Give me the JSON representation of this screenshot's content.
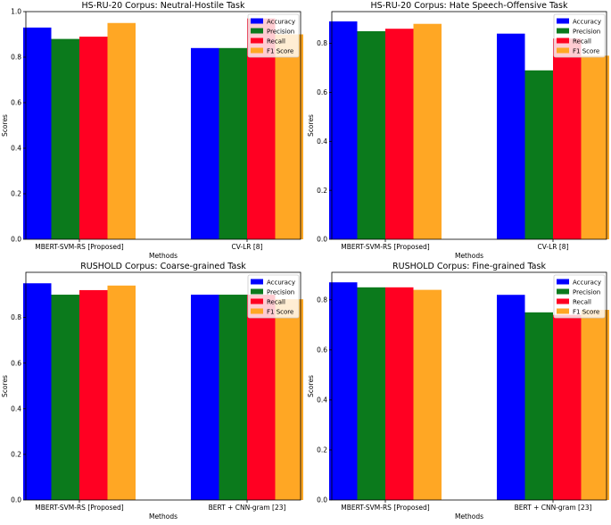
{
  "colors": {
    "Accuracy": "#0000ff",
    "Precision": "#0b7a1c",
    "Recall": "#ff0022",
    "F1 Score": "#ffa724"
  },
  "chart_data": [
    {
      "type": "bar",
      "title": "HS-RU-20 Corpus: Neutral-Hostile Task",
      "xlabel": "Methods",
      "ylabel": "Scores",
      "ylim": [
        0,
        1.0
      ],
      "yticks": [
        "0.0",
        "0.2",
        "0.4",
        "0.6",
        "0.8",
        "1.0"
      ],
      "categories": [
        "MBERT-SVM-RS [Proposed]",
        "CV-LR [8]"
      ],
      "series": [
        {
          "name": "Accuracy",
          "values": [
            0.93,
            0.84
          ]
        },
        {
          "name": "Precision",
          "values": [
            0.88,
            0.84
          ]
        },
        {
          "name": "Recall",
          "values": [
            0.89,
            0.97
          ]
        },
        {
          "name": "F1 Score",
          "values": [
            0.95,
            0.9
          ]
        }
      ],
      "legend": "top-right"
    },
    {
      "type": "bar",
      "title": "HS-RU-20 Corpus: Hate Speech-Offensive Task",
      "xlabel": "Methods",
      "ylabel": "Scores",
      "ylim": [
        0,
        0.93
      ],
      "yticks": [
        "0.0",
        "0.2",
        "0.4",
        "0.6",
        "0.8"
      ],
      "categories": [
        "MBERT-SVM-RS [Proposed]",
        "CV-LR [8]"
      ],
      "series": [
        {
          "name": "Accuracy",
          "values": [
            0.89,
            0.84
          ]
        },
        {
          "name": "Precision",
          "values": [
            0.85,
            0.69
          ]
        },
        {
          "name": "Recall",
          "values": [
            0.86,
            0.82
          ]
        },
        {
          "name": "F1 Score",
          "values": [
            0.88,
            0.75
          ]
        }
      ],
      "legend": "top-right"
    },
    {
      "type": "bar",
      "title": "RUSHOLD Corpus: Coarse-grained Task",
      "xlabel": "Methods",
      "ylabel": "Scores",
      "ylim": [
        0,
        0.998
      ],
      "yticks": [
        "0.0",
        "0.2",
        "0.4",
        "0.6",
        "0.8"
      ],
      "categories": [
        "MBERT-SVM-RS [Proposed]",
        "BERT + CNN-gram [23]"
      ],
      "series": [
        {
          "name": "Accuracy",
          "values": [
            0.95,
            0.9
          ]
        },
        {
          "name": "Precision",
          "values": [
            0.9,
            0.9
          ]
        },
        {
          "name": "Recall",
          "values": [
            0.92,
            0.9
          ]
        },
        {
          "name": "F1 Score",
          "values": [
            0.94,
            0.88
          ]
        }
      ],
      "legend": "top-right"
    },
    {
      "type": "bar",
      "title": "RUSHOLD Corpus: Fine-grained Task",
      "xlabel": "Methods",
      "ylabel": "Scores",
      "ylim": [
        0,
        0.91
      ],
      "yticks": [
        "0.0",
        "0.2",
        "0.4",
        "0.6",
        "0.8"
      ],
      "categories": [
        "MBERT-SVM-RS [Proposed]",
        "BERT + CNN-gram [23]"
      ],
      "series": [
        {
          "name": "Accuracy",
          "values": [
            0.87,
            0.82
          ]
        },
        {
          "name": "Precision",
          "values": [
            0.85,
            0.75
          ]
        },
        {
          "name": "Recall",
          "values": [
            0.85,
            0.74
          ]
        },
        {
          "name": "F1 Score",
          "values": [
            0.84,
            0.76
          ]
        }
      ],
      "legend": "top-right"
    }
  ]
}
